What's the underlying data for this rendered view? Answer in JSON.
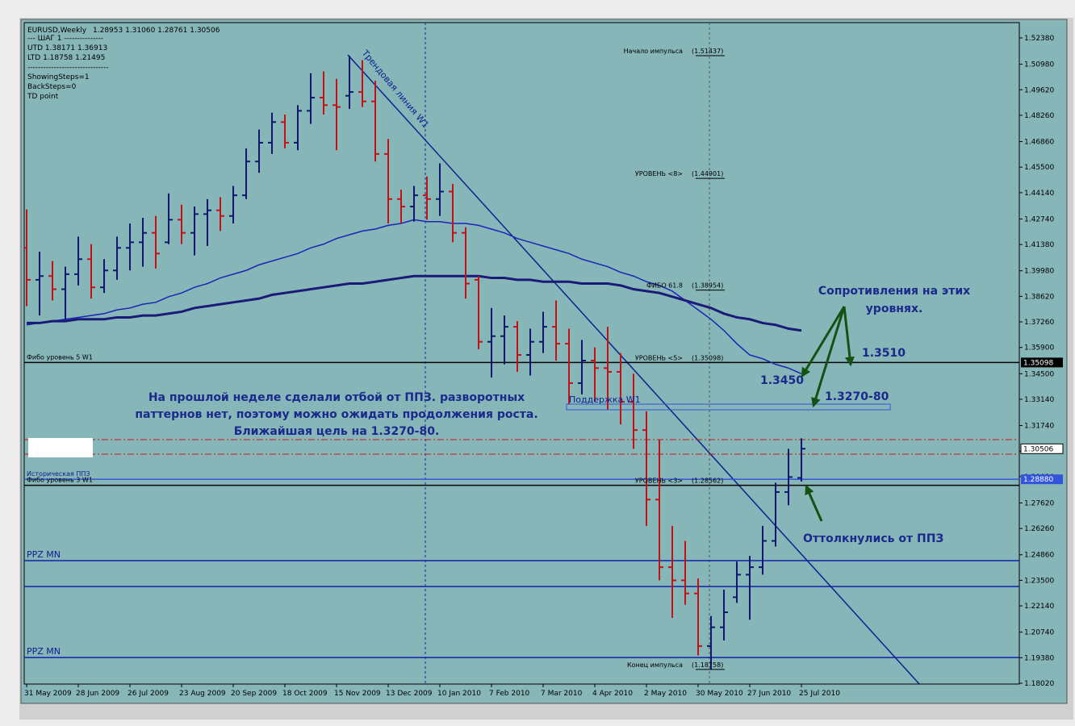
{
  "chart_data": {
    "type": "ohlc",
    "title": "EURUSD,Weekly",
    "header_ohlc": "1.28953 1.31060 1.28761 1.30506",
    "info_lines": [
      "---    ШАГ 1    ---------------",
      "UTD  1.38171  1.36913",
      "LTD  1.18758  1.21495",
      "-------------------------------",
      "ShowingSteps=1",
      "BackSteps=0",
      "TD point"
    ],
    "categories": [
      "31 May 2009",
      null,
      null,
      null,
      "28 Jun 2009",
      null,
      null,
      null,
      "26 Jul 2009",
      null,
      null,
      null,
      "23 Aug 2009",
      null,
      null,
      null,
      "20 Sep 2009",
      null,
      null,
      null,
      "18 Oct 2009",
      null,
      null,
      null,
      "15 Nov 2009",
      null,
      null,
      null,
      "13 Dec 2009",
      null,
      null,
      null,
      "10 Jan 2010",
      null,
      null,
      null,
      "7 Feb 2010",
      null,
      null,
      null,
      "7 Mar 2010",
      null,
      null,
      null,
      "4 Apr 2010",
      null,
      null,
      null,
      "2 May 2010",
      null,
      null,
      null,
      "30 May 2010",
      null,
      null,
      null,
      "27 Jun 2010",
      null,
      null,
      null,
      "25 Jul 2010"
    ],
    "open": [
      1.412,
      1.395,
      1.397,
      1.39,
      1.398,
      1.406,
      1.391,
      1.4,
      1.412,
      1.415,
      1.42,
      1.415,
      1.427,
      1.42,
      1.43,
      1.432,
      1.429,
      1.44,
      1.458,
      1.468,
      1.479,
      1.468,
      1.485,
      1.492,
      1.488,
      1.493,
      1.495,
      1.49,
      1.462,
      1.438,
      1.434,
      1.44,
      1.438,
      1.442,
      1.42,
      1.395,
      1.362,
      1.365,
      1.37,
      1.355,
      1.362,
      1.37,
      1.361,
      1.34,
      1.352,
      1.348,
      1.346,
      1.33,
      1.315,
      1.278,
      1.242,
      1.235,
      1.228,
      1.2,
      1.21,
      1.226,
      1.238,
      1.242,
      1.256,
      1.282,
      1.28953
    ],
    "high": [
      1.4325,
      1.41,
      1.405,
      1.402,
      1.418,
      1.414,
      1.406,
      1.418,
      1.425,
      1.428,
      1.429,
      1.441,
      1.435,
      1.434,
      1.438,
      1.439,
      1.445,
      1.465,
      1.475,
      1.484,
      1.483,
      1.488,
      1.505,
      1.506,
      1.502,
      1.5143,
      1.512,
      1.501,
      1.47,
      1.443,
      1.445,
      1.45,
      1.457,
      1.446,
      1.423,
      1.397,
      1.38,
      1.376,
      1.373,
      1.369,
      1.378,
      1.384,
      1.369,
      1.363,
      1.359,
      1.37,
      1.356,
      1.345,
      1.325,
      1.31,
      1.264,
      1.256,
      1.236,
      1.216,
      1.23,
      1.245,
      1.248,
      1.264,
      1.287,
      1.305,
      1.3106
    ],
    "low": [
      1.381,
      1.376,
      1.384,
      1.374,
      1.392,
      1.385,
      1.388,
      1.395,
      1.4,
      1.402,
      1.401,
      1.414,
      1.414,
      1.408,
      1.413,
      1.421,
      1.425,
      1.438,
      1.452,
      1.462,
      1.465,
      1.464,
      1.478,
      1.483,
      1.464,
      1.486,
      1.487,
      1.458,
      1.425,
      1.425,
      1.426,
      1.427,
      1.429,
      1.415,
      1.385,
      1.358,
      1.343,
      1.35,
      1.346,
      1.344,
      1.356,
      1.352,
      1.329,
      1.334,
      1.33,
      1.326,
      1.318,
      1.305,
      1.264,
      1.235,
      1.215,
      1.222,
      1.195,
      1.1876,
      1.203,
      1.223,
      1.214,
      1.238,
      1.253,
      1.275,
      1.28761
    ],
    "close": [
      1.395,
      1.397,
      1.39,
      1.398,
      1.406,
      1.391,
      1.4,
      1.412,
      1.415,
      1.42,
      1.409,
      1.427,
      1.42,
      1.43,
      1.432,
      1.429,
      1.44,
      1.458,
      1.468,
      1.479,
      1.468,
      1.485,
      1.492,
      1.488,
      1.487,
      1.495,
      1.49,
      1.462,
      1.438,
      1.434,
      1.44,
      1.438,
      1.442,
      1.42,
      1.393,
      1.362,
      1.365,
      1.37,
      1.355,
      1.362,
      1.37,
      1.361,
      1.34,
      1.352,
      1.348,
      1.346,
      1.33,
      1.315,
      1.278,
      1.242,
      1.235,
      1.228,
      1.2,
      1.21,
      1.218,
      1.238,
      1.242,
      1.256,
      1.282,
      1.29,
      1.30506
    ],
    "bull_color": "#0d1a6b",
    "bear_color": "#c0141a",
    "series": [
      {
        "color": "#1b25b5",
        "values": [
          1.371,
          1.372,
          1.373,
          1.374,
          1.375,
          1.376,
          1.377,
          1.379,
          1.38,
          1.382,
          1.383,
          1.386,
          1.388,
          1.391,
          1.393,
          1.396,
          1.398,
          1.4,
          1.403,
          1.405,
          1.407,
          1.409,
          1.412,
          1.414,
          1.417,
          1.419,
          1.421,
          1.422,
          1.424,
          1.425,
          1.427,
          1.426,
          1.426,
          1.425,
          1.425,
          1.424,
          1.422,
          1.42,
          1.417,
          1.415,
          1.413,
          1.411,
          1.409,
          1.406,
          1.404,
          1.402,
          1.399,
          1.397,
          1.394,
          1.392,
          1.389,
          1.384,
          1.379,
          1.374,
          1.368,
          1.361,
          1.355,
          1.353,
          1.35,
          1.348,
          1.345
        ]
      },
      {
        "color": "#1a1a78",
        "values": [
          1.372,
          1.372,
          1.373,
          1.373,
          1.374,
          1.374,
          1.374,
          1.375,
          1.375,
          1.376,
          1.376,
          1.377,
          1.378,
          1.38,
          1.381,
          1.382,
          1.383,
          1.384,
          1.385,
          1.387,
          1.388,
          1.389,
          1.39,
          1.391,
          1.392,
          1.393,
          1.393,
          1.394,
          1.395,
          1.396,
          1.397,
          1.397,
          1.397,
          1.397,
          1.397,
          1.397,
          1.396,
          1.396,
          1.395,
          1.395,
          1.394,
          1.394,
          1.394,
          1.393,
          1.393,
          1.393,
          1.392,
          1.39,
          1.389,
          1.388,
          1.386,
          1.384,
          1.382,
          1.38,
          1.377,
          1.375,
          1.374,
          1.372,
          1.371,
          1.369,
          1.368
        ]
      }
    ],
    "ylim": [
      1.1802,
      1.5238
    ],
    "yticks": [
      {
        "value": 1.5238,
        "label": "1.52380"
      },
      {
        "value": 1.5098,
        "label": "1.50980"
      },
      {
        "value": 1.4962,
        "label": "1.49620"
      },
      {
        "value": 1.4826,
        "label": "1.48260"
      },
      {
        "value": 1.4686,
        "label": "1.46860"
      },
      {
        "value": 1.455,
        "label": "1.45500"
      },
      {
        "value": 1.4414,
        "label": "1.44140"
      },
      {
        "value": 1.4274,
        "label": "1.42740"
      },
      {
        "value": 1.4138,
        "label": "1.41380"
      },
      {
        "value": 1.3998,
        "label": "1.39980"
      },
      {
        "value": 1.3862,
        "label": "1.38620"
      },
      {
        "value": 1.3726,
        "label": "1.37260"
      },
      {
        "value": 1.359,
        "label": "1.35900"
      },
      {
        "value": 1.345,
        "label": "1.34500"
      },
      {
        "value": 1.3314,
        "label": "1.33140"
      },
      {
        "value": 1.3174,
        "label": "1.31740"
      },
      {
        "value": 1.3038,
        "label": "1.30380"
      },
      {
        "value": 1.2902,
        "label": "1.29020"
      },
      {
        "value": 1.2762,
        "label": "1.27620"
      },
      {
        "value": 1.2626,
        "label": "1.26260"
      },
      {
        "value": 1.2486,
        "label": "1.24860"
      },
      {
        "value": 1.235,
        "label": "1.23500"
      },
      {
        "value": 1.2214,
        "label": "1.22140"
      },
      {
        "value": 1.2074,
        "label": "1.20740"
      },
      {
        "value": 1.1938,
        "label": "1.19380"
      },
      {
        "value": 1.1802,
        "label": "1.18020"
      }
    ],
    "fibo_levels": [
      {
        "text": "Начало импульса",
        "value": 1.51437,
        "value_label": "(1.51437)"
      },
      {
        "text": "УРОВЕНЬ <8>",
        "value": 1.44901,
        "value_label": "(1.44901)"
      },
      {
        "text": "ФИБО 61.8",
        "value": 1.38954,
        "value_label": "(1.38954)"
      },
      {
        "text": "УРОВЕНЬ <5>",
        "value": 1.35098,
        "value_label": "(1.35098)"
      },
      {
        "text": "УРОВЕНЬ <3>",
        "value": 1.28562,
        "value_label": "(1.28562)"
      },
      {
        "text": "Конец импульса",
        "value": 1.18758,
        "value_label": "(1.18758)"
      }
    ],
    "hlines": [
      {
        "name": "Фибо уровень 5 W1",
        "value": 1.35098,
        "color": "#000000",
        "axis_label": "1.35098"
      },
      {
        "name": "Фибо уровень 3 W1",
        "value": 1.2856,
        "color": "#000000"
      },
      {
        "name": "Историческая ППЗ",
        "value": 1.2888,
        "color": "#3355dd",
        "axis_label": "1.28880"
      },
      {
        "name": "PPZ MN",
        "value": 1.2455,
        "color": "#1020a8"
      },
      {
        "name": null,
        "value": 1.2317,
        "color": "#1020a8"
      },
      {
        "name": "PPZ MN",
        "value": 1.1939,
        "color": "#1020a8"
      },
      {
        "name": null,
        "value": 1.3099,
        "color": "#cc1010",
        "dashed": true
      },
      {
        "name": null,
        "value": 1.3022,
        "color": "#cc1010",
        "dashed": true
      }
    ],
    "price_marker": {
      "value": 1.30506,
      "label": "1.30506"
    },
    "trendline_label": "Трендовая линия W1",
    "support_label": "Поддержка W1",
    "annotations": {
      "paragraph": [
        "На прошлой неделе сделали отбой от ППЗ. разворотных",
        "паттернов нет, поэтому можно ожидать продолжения роста.",
        "Ближайшая цель на 1.3270-80."
      ],
      "resistance": [
        "Сопротивления на этих",
        "уровнях."
      ],
      "level_a": "1.3510",
      "level_b": "1.3450",
      "level_c": "1.3270-80",
      "bounce": "Оттолкнулись от ППЗ"
    }
  }
}
